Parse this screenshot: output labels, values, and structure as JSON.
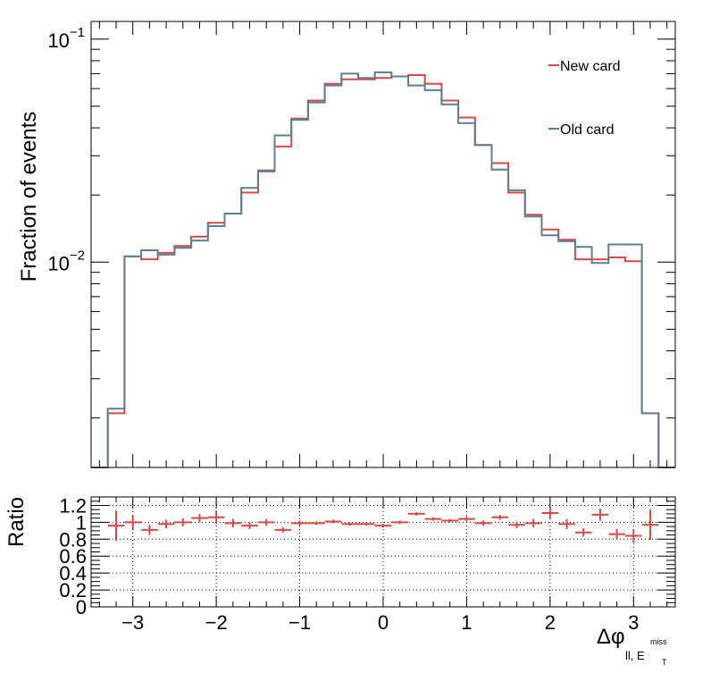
{
  "chart_data": [
    {
      "type": "line",
      "style": "step",
      "ylabel": "Fraction of events",
      "yscale": "log",
      "ylim": [
        0.0012,
        0.12
      ],
      "xlim": [
        -3.5,
        3.5
      ],
      "y_tick_labels": [
        {
          "value": 0.01,
          "base": "10",
          "exp": "−2"
        },
        {
          "value": 0.1,
          "base": "10",
          "exp": "−1"
        }
      ],
      "bin_edges": [
        -3.5,
        -3.3,
        -3.1,
        -2.9,
        -2.7,
        -2.5,
        -2.3,
        -2.1,
        -1.9,
        -1.7,
        -1.5,
        -1.3,
        -1.1,
        -0.9,
        -0.7,
        -0.5,
        -0.3,
        -0.1,
        0.1,
        0.3,
        0.5,
        0.7,
        0.9,
        1.1,
        1.3,
        1.5,
        1.7,
        1.9,
        2.1,
        2.3,
        2.5,
        2.7,
        2.9,
        3.1,
        3.3,
        3.5
      ],
      "legend": {
        "placement": "top-right"
      },
      "series": [
        {
          "name": "New card",
          "color": "#d94848",
          "values": [
            0.0005,
            0.0021,
            0.0106,
            0.0103,
            0.011,
            0.0118,
            0.013,
            0.015,
            0.0165,
            0.0205,
            0.0255,
            0.033,
            0.044,
            0.053,
            0.063,
            0.066,
            0.066,
            0.067,
            0.068,
            0.069,
            0.063,
            0.053,
            0.0445,
            0.0335,
            0.0278,
            0.0205,
            0.0163,
            0.014,
            0.0126,
            0.0103,
            0.0103,
            0.0105,
            0.0101,
            0.0021,
            0.0005
          ]
        },
        {
          "name": "Old card",
          "color": "#5b7f95",
          "values": [
            0.0005,
            0.0022,
            0.0106,
            0.0113,
            0.0108,
            0.0116,
            0.0125,
            0.0145,
            0.0165,
            0.0215,
            0.0258,
            0.037,
            0.0435,
            0.052,
            0.062,
            0.07,
            0.067,
            0.071,
            0.068,
            0.062,
            0.059,
            0.051,
            0.042,
            0.0335,
            0.026,
            0.021,
            0.016,
            0.0132,
            0.0124,
            0.0117,
            0.0099,
            0.012,
            0.012,
            0.0021,
            0.0005
          ]
        }
      ]
    },
    {
      "type": "scatter",
      "style": "errorbar",
      "ylabel": "Ratio",
      "xlabel": {
        "base": "Δφ",
        "sub": "ll, E",
        "subsub": "T",
        "sup": "miss"
      },
      "ylim": [
        0,
        1.3
      ],
      "xlim": [
        -3.5,
        3.5
      ],
      "y_ticks": [
        0,
        0.2,
        0.4,
        0.6,
        0.8,
        1,
        1.2
      ],
      "y_tick_labels": [
        "0",
        "0.2",
        "0.4",
        "0.6",
        "0.8",
        "1",
        "1.2"
      ],
      "x_ticks": [
        -3,
        -2,
        -1,
        0,
        1,
        2,
        3
      ],
      "x_tick_labels": [
        "−3",
        "−2",
        "−1",
        "0",
        "1",
        "2",
        "3"
      ],
      "grid": true,
      "color": "#d94848",
      "x": [
        -3.2,
        -3.0,
        -2.8,
        -2.6,
        -2.4,
        -2.2,
        -2.0,
        -1.8,
        -1.6,
        -1.4,
        -1.2,
        -1.0,
        -0.8,
        -0.6,
        -0.4,
        -0.2,
        0.0,
        0.2,
        0.4,
        0.6,
        0.8,
        1.0,
        1.2,
        1.4,
        1.6,
        1.8,
        2.0,
        2.2,
        2.4,
        2.6,
        2.8,
        3.0,
        3.2
      ],
      "y": [
        0.96,
        1.0,
        0.91,
        0.98,
        1.0,
        1.05,
        1.06,
        0.99,
        0.96,
        1.0,
        0.91,
        0.99,
        0.99,
        1.01,
        0.98,
        0.98,
        0.96,
        1.0,
        1.1,
        1.04,
        1.02,
        1.04,
        0.99,
        1.06,
        0.97,
        0.99,
        1.11,
        0.98,
        0.88,
        1.09,
        0.86,
        0.84,
        0.97
      ],
      "yerr": [
        0.18,
        0.08,
        0.06,
        0.05,
        0.05,
        0.05,
        0.08,
        0.05,
        0.04,
        0.04,
        0.03,
        0.03,
        0.02,
        0.02,
        0.02,
        0.02,
        0.02,
        0.02,
        0.02,
        0.02,
        0.02,
        0.03,
        0.03,
        0.03,
        0.04,
        0.05,
        0.07,
        0.06,
        0.05,
        0.07,
        0.06,
        0.08,
        0.18
      ]
    }
  ]
}
